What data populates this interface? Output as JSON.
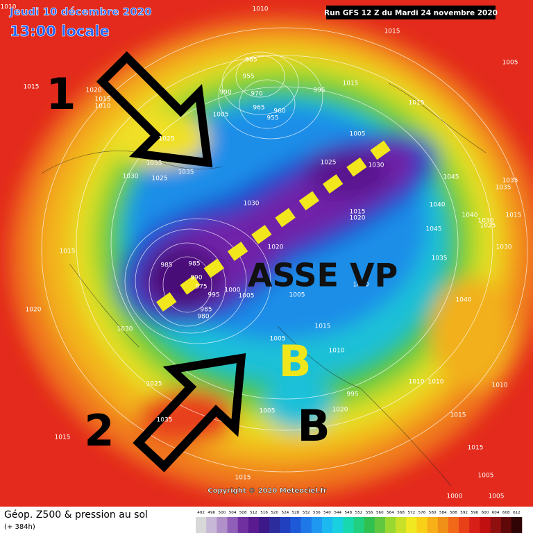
{
  "header": {
    "date": "Jeudi 10 décembre 2020",
    "time": "13:00 locale",
    "run": "Run GFS 12 Z du Mardi 24 novembre 2020"
  },
  "annotations": {
    "arrow_1": "1",
    "arrow_2": "2",
    "axis": "ASSE VP",
    "low_1": "B",
    "low_2": "B"
  },
  "copyright": "Copyright © 2020 Meteociel.fr",
  "footer": {
    "title": "Géop. Z500 & pression au sol",
    "lead": "(+ 384h)"
  },
  "colorbar": {
    "labels": [
      492,
      496,
      500,
      504,
      508,
      512,
      516,
      520,
      524,
      528,
      532,
      536,
      540,
      544,
      548,
      552,
      556,
      560,
      564,
      568,
      572,
      576,
      580,
      584,
      588,
      592,
      596,
      600,
      604,
      608,
      612
    ],
    "colors": [
      "#d8d8d8",
      "#c8b8d8",
      "#b090c8",
      "#9060b8",
      "#7030a0",
      "#5a1a90",
      "#3c1888",
      "#2c2c9c",
      "#2040c0",
      "#1e5ad8",
      "#1e78e8",
      "#1e98f0",
      "#1cb8f0",
      "#18d0e0",
      "#18d8b0",
      "#20d080",
      "#30c050",
      "#60c840",
      "#98d830",
      "#c8e028",
      "#f0e820",
      "#f8d018",
      "#f8b018",
      "#f09018",
      "#f06818",
      "#e84018",
      "#d82018",
      "#c01010",
      "#901010",
      "#600808",
      "#300404"
    ]
  },
  "pressure_labels": [
    "1010",
    "1010",
    "1015",
    "1005",
    "1015",
    "1020",
    "1015",
    "1010",
    "985",
    "955",
    "990",
    "970",
    "965",
    "960",
    "955",
    "995",
    "1015",
    "1015",
    "1005",
    "1025",
    "1035",
    "1035",
    "1025",
    "1030",
    "1005",
    "1025",
    "1030",
    "1045",
    "1035",
    "1035",
    "1030",
    "1015",
    "1020",
    "1040",
    "1040",
    "1030",
    "1025",
    "1015",
    "1045",
    "1015",
    "1020",
    "1035",
    "1030",
    "985",
    "985",
    "990",
    "975",
    "1000",
    "995",
    "1005",
    "1005",
    "1020",
    "1040",
    "1020",
    "985",
    "980",
    "1030",
    "1015",
    "1005",
    "1010",
    "1010",
    "1010",
    "1010",
    "1025",
    "995",
    "1005",
    "1020",
    "1035",
    "1015",
    "1015",
    "1015",
    "1015",
    "1005",
    "1000",
    "1005"
  ]
}
